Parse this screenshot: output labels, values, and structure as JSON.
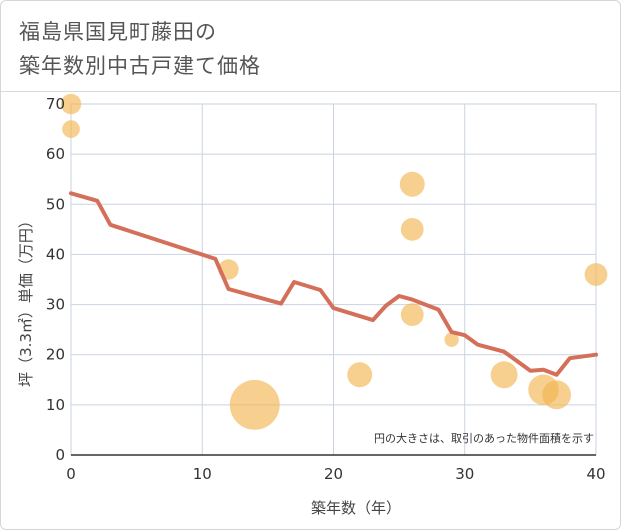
{
  "title": {
    "line1": "福島県国見町藤田の",
    "line2": "築年数別中古戸建て価格"
  },
  "colors": {
    "line": "#d4705a",
    "bubble": "#f2b552",
    "grid": "#c9d3e2",
    "plot_bg": "#ffffff"
  },
  "chart_data": {
    "type": "scatter",
    "title": "福島県国見町藤田の築年数別中古戸建て価格",
    "xlabel": "築年数（年）",
    "ylabel": "坪（3.3㎡）単価（万円）",
    "xlim": [
      0,
      40
    ],
    "ylim": [
      0,
      70
    ],
    "xticks": [
      0,
      10,
      20,
      30,
      40
    ],
    "yticks": [
      0,
      10,
      20,
      30,
      40,
      50,
      60,
      70
    ],
    "grid": true,
    "note": "円の大きさは、取引のあった物件面積を示す",
    "series": [
      {
        "kind": "line",
        "x": [
          0,
          2,
          3,
          11,
          12,
          16,
          17,
          19,
          20,
          23,
          24,
          25,
          26,
          28,
          29,
          30,
          31,
          33,
          35,
          36,
          37,
          38,
          40
        ],
        "y": [
          52.2,
          50.7,
          45.9,
          39.1,
          33.1,
          30.2,
          34.5,
          32.9,
          29.3,
          26.9,
          29.8,
          31.7,
          31.0,
          29.0,
          24.5,
          23.9,
          22.0,
          20.6,
          16.8,
          17.0,
          16.0,
          19.3,
          20.0
        ]
      },
      {
        "kind": "bubble",
        "points": [
          {
            "x": 0,
            "y": 70,
            "size": 2
          },
          {
            "x": 0,
            "y": 65,
            "size": 1.5
          },
          {
            "x": 12,
            "y": 37,
            "size": 2
          },
          {
            "x": 14,
            "y": 10,
            "size": 12
          },
          {
            "x": 22,
            "y": 16,
            "size": 3
          },
          {
            "x": 26,
            "y": 54,
            "size": 3
          },
          {
            "x": 26,
            "y": 45,
            "size": 2.5
          },
          {
            "x": 26,
            "y": 28,
            "size": 2.5
          },
          {
            "x": 29,
            "y": 23,
            "size": 1
          },
          {
            "x": 33,
            "y": 16,
            "size": 3.5
          },
          {
            "x": 36,
            "y": 13,
            "size": 4.5
          },
          {
            "x": 37,
            "y": 12,
            "size": 4
          },
          {
            "x": 40,
            "y": 36,
            "size": 2.5
          }
        ]
      }
    ]
  }
}
